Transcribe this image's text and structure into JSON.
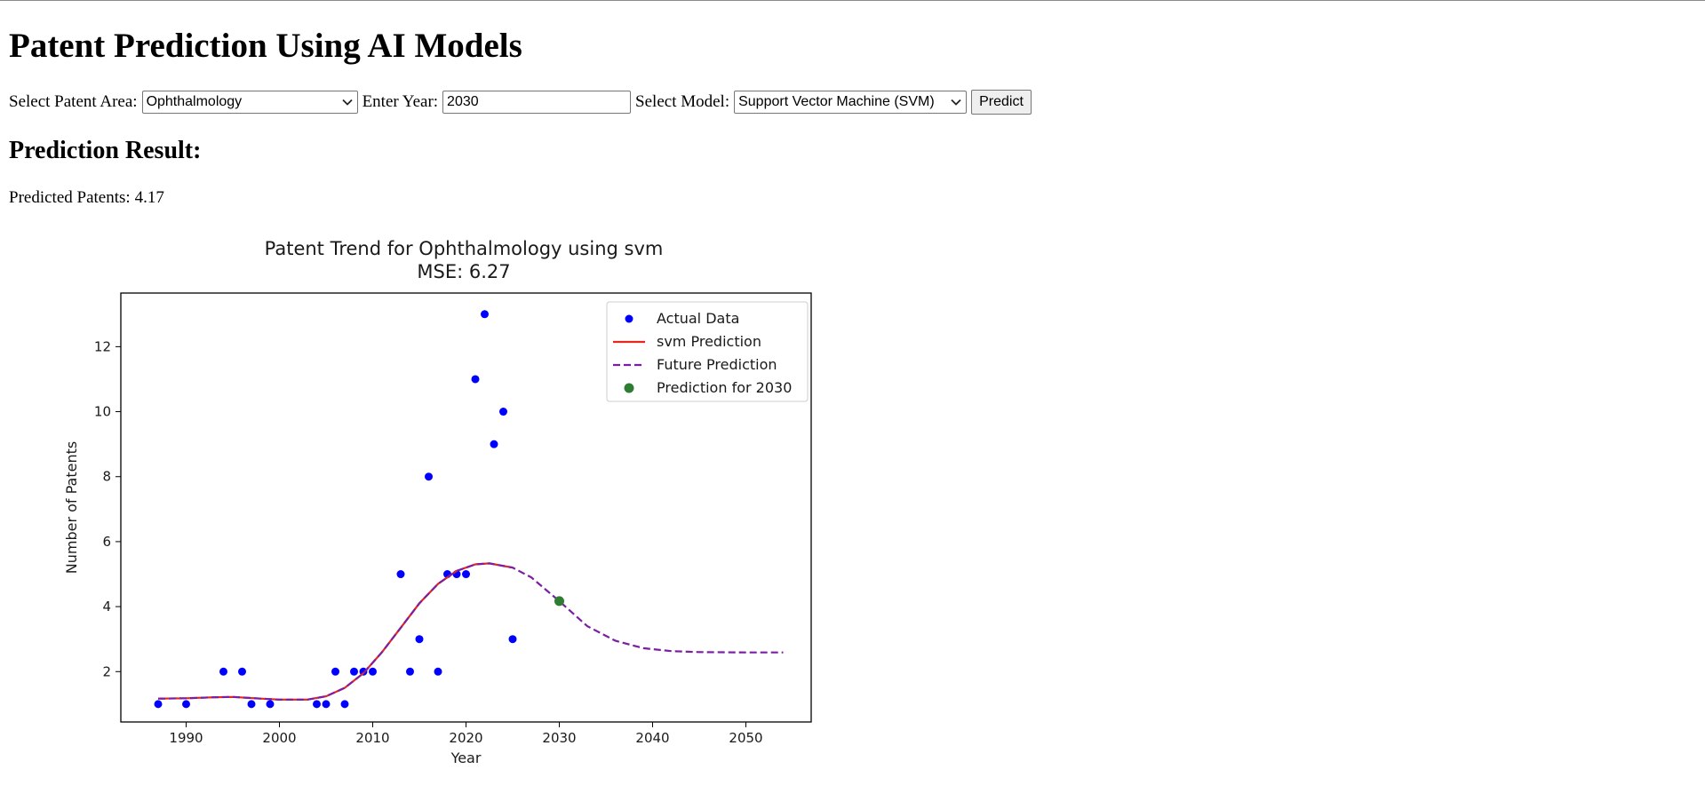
{
  "page": {
    "title": "Patent Prediction Using AI Models"
  },
  "form": {
    "area_label": "Select Patent Area:",
    "area_value": "Ophthalmology",
    "year_label": "Enter Year:",
    "year_value": "2030",
    "model_label": "Select Model:",
    "model_value": "Support Vector Machine (SVM)",
    "predict_label": "Predict"
  },
  "result": {
    "heading": "Prediction Result:",
    "label": "Predicted Patents:",
    "value": "4.17"
  },
  "icons": {
    "dropdown": "chevron-down-icon"
  },
  "chart_data": {
    "type": "scatter",
    "title": "Patent Trend for Ophthalmology using svm",
    "subtitle": "MSE: 6.27",
    "xlabel": "Year",
    "ylabel": "Number of Patents",
    "xlim": [
      1983,
      2057
    ],
    "ylim": [
      0.45,
      13.65
    ],
    "xticks": [
      1990,
      2000,
      2010,
      2020,
      2030,
      2040,
      2050
    ],
    "yticks": [
      2,
      4,
      6,
      8,
      10,
      12
    ],
    "grid": false,
    "legend_position": "top-right",
    "series": [
      {
        "name": "Actual Data",
        "kind": "scatter",
        "color": "#0000ff",
        "points": [
          [
            1987,
            1
          ],
          [
            1990,
            1
          ],
          [
            1994,
            2
          ],
          [
            1996,
            2
          ],
          [
            1997,
            1
          ],
          [
            1999,
            1
          ],
          [
            2004,
            1
          ],
          [
            2005,
            1
          ],
          [
            2006,
            2
          ],
          [
            2007,
            1
          ],
          [
            2008,
            2
          ],
          [
            2009,
            2
          ],
          [
            2010,
            2
          ],
          [
            2013,
            5
          ],
          [
            2014,
            2
          ],
          [
            2015,
            3
          ],
          [
            2016,
            8
          ],
          [
            2017,
            2
          ],
          [
            2018,
            5
          ],
          [
            2019,
            5
          ],
          [
            2020,
            5
          ],
          [
            2021,
            11
          ],
          [
            2022,
            13
          ],
          [
            2023,
            9
          ],
          [
            2024,
            10
          ],
          [
            2025,
            3
          ]
        ]
      },
      {
        "name": "svm Prediction",
        "kind": "line",
        "color": "#e8261c",
        "points": [
          [
            1987,
            1.17
          ],
          [
            1990,
            1.18
          ],
          [
            1993,
            1.21
          ],
          [
            1995,
            1.22
          ],
          [
            1998,
            1.17
          ],
          [
            2000,
            1.14
          ],
          [
            2003,
            1.14
          ],
          [
            2005,
            1.24
          ],
          [
            2007,
            1.5
          ],
          [
            2009,
            1.95
          ],
          [
            2011,
            2.6
          ],
          [
            2013,
            3.35
          ],
          [
            2015,
            4.1
          ],
          [
            2017,
            4.7
          ],
          [
            2019,
            5.1
          ],
          [
            2021,
            5.3
          ],
          [
            2022.5,
            5.33
          ],
          [
            2025,
            5.2
          ]
        ]
      },
      {
        "name": "Future Prediction",
        "kind": "dashed",
        "color": "#7b1fa2",
        "points": [
          [
            1987,
            1.17
          ],
          [
            1990,
            1.18
          ],
          [
            1993,
            1.21
          ],
          [
            1995,
            1.22
          ],
          [
            1998,
            1.17
          ],
          [
            2000,
            1.14
          ],
          [
            2003,
            1.14
          ],
          [
            2005,
            1.24
          ],
          [
            2007,
            1.5
          ],
          [
            2009,
            1.95
          ],
          [
            2011,
            2.6
          ],
          [
            2013,
            3.35
          ],
          [
            2015,
            4.1
          ],
          [
            2017,
            4.7
          ],
          [
            2019,
            5.1
          ],
          [
            2021,
            5.3
          ],
          [
            2022.5,
            5.33
          ],
          [
            2025,
            5.2
          ],
          [
            2027,
            4.9
          ],
          [
            2030,
            4.17
          ],
          [
            2033,
            3.4
          ],
          [
            2036,
            2.95
          ],
          [
            2039,
            2.72
          ],
          [
            2042,
            2.63
          ],
          [
            2045,
            2.6
          ],
          [
            2050,
            2.59
          ],
          [
            2054,
            2.59
          ]
        ]
      },
      {
        "name": "Prediction for 2030",
        "kind": "scatter",
        "color": "#2e7d32",
        "points": [
          [
            2030,
            4.17
          ]
        ]
      }
    ]
  }
}
